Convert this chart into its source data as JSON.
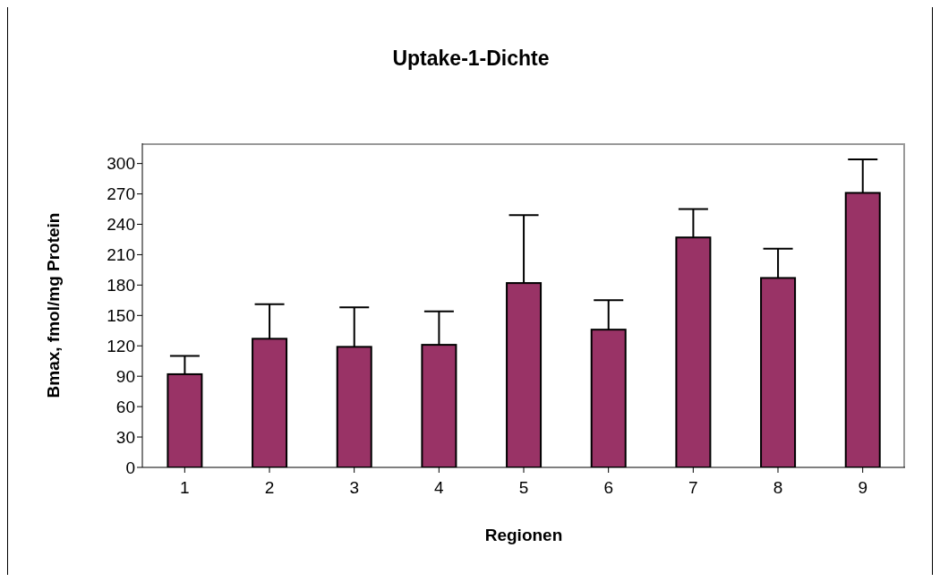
{
  "chart_data": {
    "type": "bar",
    "title": "Uptake-1-Dichte",
    "xlabel": "Regionen",
    "ylabel": "Bmax, fmol/mg Protein",
    "categories": [
      "1",
      "2",
      "3",
      "4",
      "5",
      "6",
      "7",
      "8",
      "9"
    ],
    "values": [
      92,
      127,
      119,
      121,
      182,
      136,
      227,
      187,
      271
    ],
    "errors": [
      [
        92,
        110
      ],
      [
        127,
        161
      ],
      [
        119,
        158
      ],
      [
        121,
        154
      ],
      [
        182,
        249
      ],
      [
        136,
        165
      ],
      [
        227,
        255
      ],
      [
        187,
        216
      ],
      [
        271,
        304
      ]
    ],
    "color": "#993366",
    "ylim": [
      0,
      320
    ],
    "yticks": [
      0,
      30,
      60,
      90,
      120,
      150,
      180,
      210,
      240,
      270,
      300
    ]
  }
}
